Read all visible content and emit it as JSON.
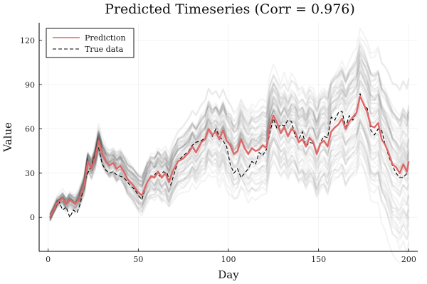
{
  "chart_data": {
    "type": "line",
    "title": "Predicted Timeseries (Corr = 0.976)",
    "xlabel": "Day",
    "ylabel": "Value",
    "xlim": [
      -5,
      205
    ],
    "ylim": [
      -23,
      132
    ],
    "xticks": [
      0,
      50,
      100,
      150,
      200
    ],
    "yticks": [
      0,
      30,
      60,
      90,
      120
    ],
    "grid": true,
    "legend_position": "top-left",
    "series": [
      {
        "name": "Prediction",
        "color": "#e06767",
        "points": [
          [
            1,
            0
          ],
          [
            5,
            10
          ],
          [
            8,
            13
          ],
          [
            10,
            9
          ],
          [
            12,
            12
          ],
          [
            15,
            9
          ],
          [
            17,
            12
          ],
          [
            20,
            22
          ],
          [
            22,
            38
          ],
          [
            24,
            33
          ],
          [
            26,
            40
          ],
          [
            28,
            52
          ],
          [
            30,
            43
          ],
          [
            32,
            38
          ],
          [
            34,
            35
          ],
          [
            36,
            37
          ],
          [
            38,
            33
          ],
          [
            40,
            35
          ],
          [
            42,
            31
          ],
          [
            44,
            26
          ],
          [
            47,
            22
          ],
          [
            50,
            17
          ],
          [
            52,
            15
          ],
          [
            55,
            24
          ],
          [
            57,
            28
          ],
          [
            59,
            27
          ],
          [
            61,
            31
          ],
          [
            63,
            27
          ],
          [
            65,
            30
          ],
          [
            67,
            24
          ],
          [
            69,
            31
          ],
          [
            72,
            38
          ],
          [
            75,
            40
          ],
          [
            78,
            44
          ],
          [
            80,
            48
          ],
          [
            82,
            44
          ],
          [
            85,
            51
          ],
          [
            87,
            53
          ],
          [
            89,
            60
          ],
          [
            91,
            56
          ],
          [
            93,
            58
          ],
          [
            95,
            53
          ],
          [
            97,
            59
          ],
          [
            99,
            52
          ],
          [
            101,
            49
          ],
          [
            103,
            43
          ],
          [
            105,
            45
          ],
          [
            107,
            53
          ],
          [
            109,
            47
          ],
          [
            111,
            43
          ],
          [
            113,
            47
          ],
          [
            115,
            45
          ],
          [
            117,
            46
          ],
          [
            119,
            49
          ],
          [
            121,
            47
          ],
          [
            123,
            62
          ],
          [
            125,
            69
          ],
          [
            127,
            64
          ],
          [
            129,
            57
          ],
          [
            131,
            61
          ],
          [
            133,
            55
          ],
          [
            135,
            60
          ],
          [
            137,
            58
          ],
          [
            139,
            51
          ],
          [
            141,
            53
          ],
          [
            143,
            48
          ],
          [
            145,
            54
          ],
          [
            147,
            51
          ],
          [
            149,
            43
          ],
          [
            151,
            50
          ],
          [
            153,
            52
          ],
          [
            155,
            48
          ],
          [
            157,
            58
          ],
          [
            159,
            61
          ],
          [
            161,
            63
          ],
          [
            163,
            67
          ],
          [
            165,
            60
          ],
          [
            167,
            65
          ],
          [
            169,
            68
          ],
          [
            171,
            71
          ],
          [
            173,
            82
          ],
          [
            175,
            77
          ],
          [
            177,
            71
          ],
          [
            179,
            62
          ],
          [
            181,
            61
          ],
          [
            183,
            64
          ],
          [
            185,
            53
          ],
          [
            187,
            49
          ],
          [
            189,
            43
          ],
          [
            191,
            36
          ],
          [
            193,
            34
          ],
          [
            195,
            30
          ],
          [
            197,
            36
          ],
          [
            199,
            31
          ],
          [
            200,
            38
          ]
        ]
      },
      {
        "name": "True data",
        "color": "#000000",
        "points": [
          [
            1,
            0
          ],
          [
            4,
            7
          ],
          [
            6,
            11
          ],
          [
            8,
            5
          ],
          [
            10,
            7
          ],
          [
            12,
            0
          ],
          [
            14,
            5
          ],
          [
            16,
            3
          ],
          [
            18,
            10
          ],
          [
            20,
            24
          ],
          [
            22,
            30
          ],
          [
            24,
            35
          ],
          [
            26,
            42
          ],
          [
            28,
            47
          ],
          [
            30,
            36
          ],
          [
            32,
            32
          ],
          [
            34,
            30
          ],
          [
            36,
            31
          ],
          [
            38,
            29
          ],
          [
            40,
            28
          ],
          [
            42,
            27
          ],
          [
            44,
            24
          ],
          [
            46,
            21
          ],
          [
            48,
            19
          ],
          [
            50,
            15
          ],
          [
            52,
            12
          ],
          [
            54,
            21
          ],
          [
            56,
            26
          ],
          [
            58,
            28
          ],
          [
            60,
            30
          ],
          [
            62,
            28
          ],
          [
            64,
            31
          ],
          [
            66,
            30
          ],
          [
            68,
            22
          ],
          [
            70,
            30
          ],
          [
            72,
            38
          ],
          [
            75,
            42
          ],
          [
            78,
            45
          ],
          [
            80,
            49
          ],
          [
            82,
            51
          ],
          [
            85,
            52
          ],
          [
            87,
            54
          ],
          [
            89,
            60
          ],
          [
            91,
            55
          ],
          [
            93,
            60
          ],
          [
            95,
            55
          ],
          [
            97,
            52
          ],
          [
            99,
            48
          ],
          [
            101,
            36
          ],
          [
            103,
            30
          ],
          [
            105,
            33
          ],
          [
            107,
            27
          ],
          [
            109,
            30
          ],
          [
            111,
            33
          ],
          [
            113,
            38
          ],
          [
            115,
            36
          ],
          [
            117,
            44
          ],
          [
            119,
            42
          ],
          [
            121,
            46
          ],
          [
            123,
            58
          ],
          [
            125,
            67
          ],
          [
            127,
            60
          ],
          [
            129,
            63
          ],
          [
            131,
            62
          ],
          [
            133,
            66
          ],
          [
            135,
            65
          ],
          [
            137,
            55
          ],
          [
            139,
            53
          ],
          [
            141,
            58
          ],
          [
            143,
            48
          ],
          [
            145,
            51
          ],
          [
            147,
            50
          ],
          [
            149,
            43
          ],
          [
            151,
            51
          ],
          [
            153,
            55
          ],
          [
            155,
            54
          ],
          [
            157,
            68
          ],
          [
            159,
            66
          ],
          [
            161,
            71
          ],
          [
            163,
            72
          ],
          [
            165,
            61
          ],
          [
            167,
            69
          ],
          [
            169,
            66
          ],
          [
            171,
            71
          ],
          [
            173,
            84
          ],
          [
            175,
            76
          ],
          [
            177,
            74
          ],
          [
            179,
            59
          ],
          [
            181,
            56
          ],
          [
            183,
            60
          ],
          [
            185,
            59
          ],
          [
            187,
            49
          ],
          [
            189,
            41
          ],
          [
            191,
            35
          ],
          [
            193,
            30
          ],
          [
            195,
            27
          ],
          [
            197,
            27
          ],
          [
            199,
            30
          ],
          [
            200,
            37
          ]
        ]
      }
    ],
    "ensemble": {
      "color": "#000000",
      "member_count": 60,
      "spread_growth": 0.23,
      "opacity": 0.045
    }
  }
}
